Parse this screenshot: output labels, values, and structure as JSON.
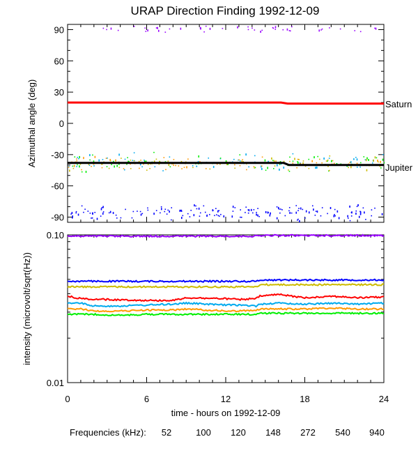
{
  "chart_data": [
    {
      "type": "scatter",
      "title": "URAP Direction Finding  1992-12-09",
      "ylabel": "Azimuthal angle (deg)",
      "ylim": [
        -95,
        95
      ],
      "xlim": [
        0,
        24
      ],
      "yticks": [
        90,
        60,
        30,
        0,
        -30,
        -60,
        -90
      ],
      "grid": false,
      "series": [
        {
          "name": "Saturn",
          "kind": "line",
          "color": "#ff0000",
          "x": [
            0,
            16.2,
            16.7,
            24
          ],
          "y": [
            20,
            20,
            19,
            19
          ]
        },
        {
          "name": "Jupiter",
          "kind": "line",
          "color": "#000000",
          "x": [
            0,
            16.4,
            16.8,
            24
          ],
          "y": [
            -38,
            -38,
            -40,
            -40
          ]
        }
      ],
      "scatter_clusters": [
        {
          "frequency": "940",
          "color": "#9900ff",
          "x_range": [
            0,
            24
          ],
          "y_center": 91,
          "spread": 4
        },
        {
          "frequency": "540",
          "color": "#0000ff",
          "x_range": [
            0,
            24
          ],
          "y_center": -85,
          "spread": 8
        },
        {
          "frequency": "272",
          "color": "#00aaee",
          "x_range": [
            0,
            24
          ],
          "y_center": -37,
          "spread": 10
        },
        {
          "frequency": "148",
          "color": "#00ee00",
          "x_range": [
            0,
            24
          ],
          "y_center": -37,
          "spread": 10
        },
        {
          "frequency": "120",
          "color": "#ccbb00",
          "x_range": [
            0,
            24
          ],
          "y_center": -38,
          "spread": 8
        },
        {
          "frequency": "100",
          "color": "#ff9900",
          "x_range": [
            0,
            24
          ],
          "y_center": -38,
          "spread": 8
        }
      ]
    },
    {
      "type": "line",
      "ylabel": "intensity (microvolt/sqrt(Hz))",
      "xlabel": "time - hours on 1992-12-09",
      "yscale": "log",
      "ylim": [
        0.01,
        0.1
      ],
      "xlim": [
        0,
        24
      ],
      "xticks": [
        0,
        6,
        12,
        18,
        24
      ],
      "yticks": [
        0.1,
        0.01
      ],
      "ytick_labels": [
        "0.10",
        "0.01"
      ],
      "grid": false,
      "series": [
        {
          "frequency": "940",
          "color": "#9900ff",
          "x": [
            0,
            6,
            12,
            14.3,
            14.6,
            18,
            24
          ],
          "y": [
            0.098,
            0.098,
            0.098,
            0.098,
            0.099,
            0.099,
            0.099
          ]
        },
        {
          "frequency": "540",
          "color": "#0000ff",
          "x": [
            0,
            6,
            12,
            14.3,
            14.6,
            18,
            24
          ],
          "y": [
            0.0485,
            0.0485,
            0.0485,
            0.0485,
            0.0495,
            0.0495,
            0.0495
          ]
        },
        {
          "frequency": "120",
          "color": "#ccbb00",
          "x": [
            0,
            6,
            12,
            14.3,
            14.6,
            18,
            24
          ],
          "y": [
            0.0445,
            0.0445,
            0.0445,
            0.0445,
            0.046,
            0.046,
            0.046
          ]
        },
        {
          "frequency": "52",
          "color": "#ff0000",
          "x": [
            0,
            1,
            3,
            6,
            8,
            9,
            12,
            13,
            14.3,
            14.6,
            16,
            18,
            20,
            22,
            24
          ],
          "y": [
            0.0385,
            0.037,
            0.0365,
            0.036,
            0.036,
            0.0375,
            0.037,
            0.0365,
            0.037,
            0.0385,
            0.0395,
            0.0375,
            0.0385,
            0.0375,
            0.038
          ]
        },
        {
          "frequency": "272",
          "color": "#00aaee",
          "x": [
            0,
            1,
            2,
            4,
            6,
            8,
            9,
            12,
            13,
            14.3,
            14.6,
            16,
            18,
            20,
            22,
            24
          ],
          "y": [
            0.0345,
            0.0345,
            0.033,
            0.033,
            0.0335,
            0.034,
            0.0345,
            0.0335,
            0.0335,
            0.033,
            0.034,
            0.0345,
            0.034,
            0.0345,
            0.034,
            0.0345
          ]
        },
        {
          "frequency": "100",
          "color": "#ff9900",
          "x": [
            0,
            1,
            2,
            4,
            6,
            8,
            9,
            12,
            13,
            14.3,
            14.6,
            16,
            18,
            20,
            22,
            24
          ],
          "y": [
            0.0315,
            0.0315,
            0.0305,
            0.0305,
            0.031,
            0.031,
            0.0315,
            0.0305,
            0.0305,
            0.031,
            0.0315,
            0.0315,
            0.0315,
            0.032,
            0.0315,
            0.0315
          ]
        },
        {
          "frequency": "148",
          "color": "#00ee00",
          "x": [
            0,
            1,
            2,
            4,
            6,
            8,
            9,
            12,
            13,
            14.3,
            14.6,
            16,
            18,
            20,
            22,
            24
          ],
          "y": [
            0.029,
            0.029,
            0.029,
            0.0285,
            0.029,
            0.029,
            0.029,
            0.029,
            0.029,
            0.029,
            0.0295,
            0.0295,
            0.0295,
            0.0295,
            0.0295,
            0.0295
          ]
        }
      ]
    }
  ],
  "legend": {
    "label": "Frequencies (kHz):",
    "items": [
      {
        "text": "52",
        "color": "#ff0000"
      },
      {
        "text": "100",
        "color": "#ff9900"
      },
      {
        "text": "120",
        "color": "#ccbb00"
      },
      {
        "text": "148",
        "color": "#00ee00"
      },
      {
        "text": "272",
        "color": "#00aaee"
      },
      {
        "text": "540",
        "color": "#0000ff"
      },
      {
        "text": "940",
        "color": "#9900ff"
      }
    ]
  }
}
